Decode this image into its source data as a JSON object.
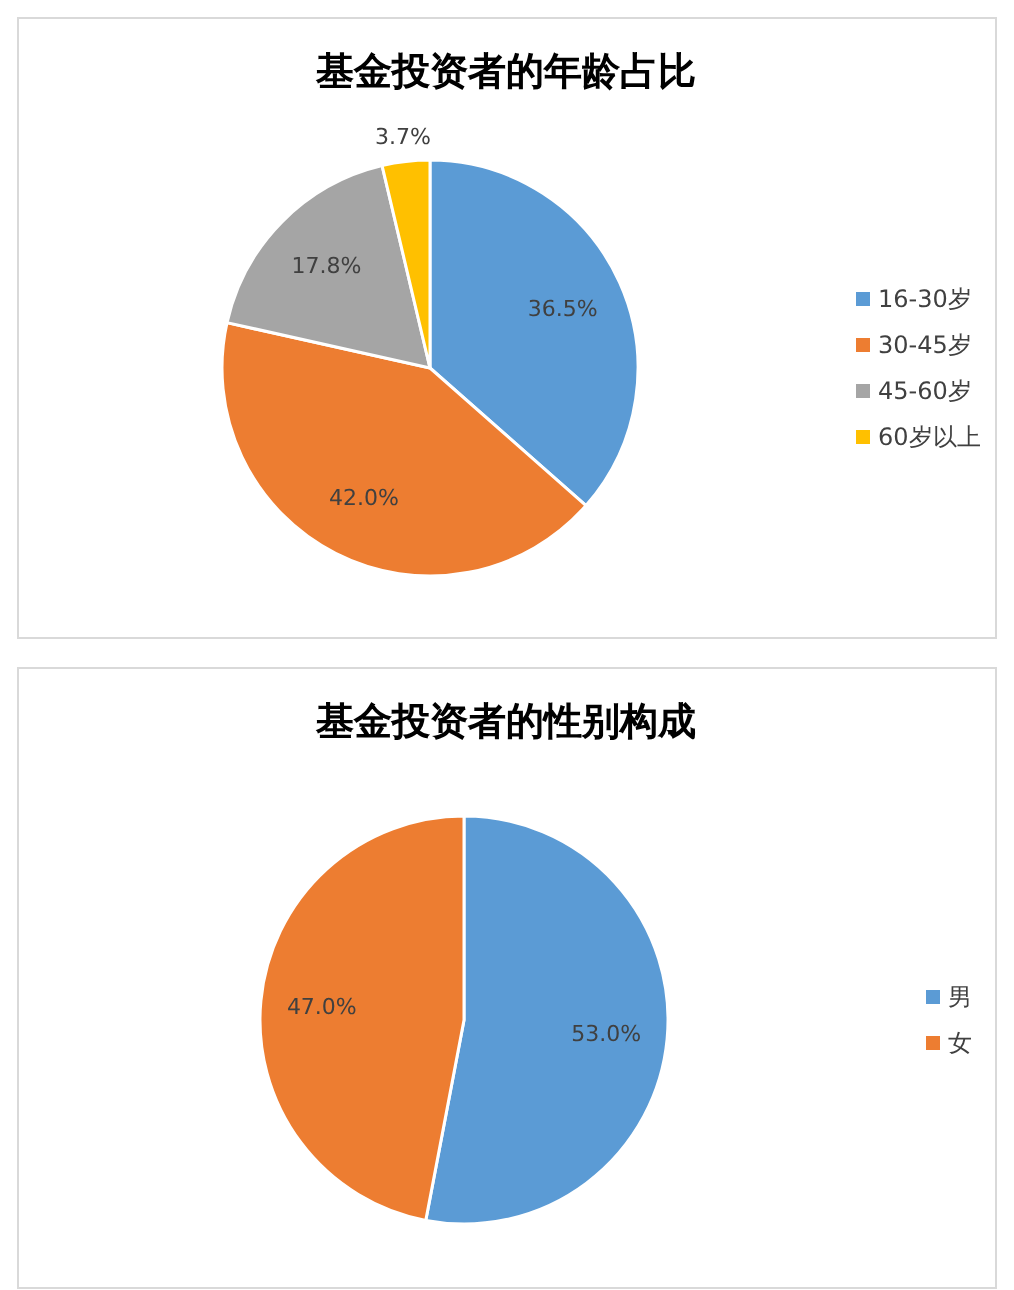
{
  "chart_data": [
    {
      "type": "pie",
      "title": "基金投资者的年龄占比",
      "categories": [
        "16-30岁",
        "30-45岁",
        "45-60岁",
        "60岁以上"
      ],
      "values": [
        36.5,
        42.0,
        17.8,
        3.7
      ],
      "colors": [
        "#5b9bd5",
        "#ed7d31",
        "#a5a5a5",
        "#ffc000"
      ],
      "value_labels": [
        "36.5%",
        "42.0%",
        "17.8%",
        "3.7%"
      ],
      "legend": "right"
    },
    {
      "type": "pie",
      "title": "基金投资者的性别构成",
      "categories": [
        "男",
        "女"
      ],
      "values": [
        53.0,
        47.0
      ],
      "colors": [
        "#5b9bd5",
        "#ed7d31"
      ],
      "value_labels": [
        "53.0%",
        "47.0%"
      ],
      "legend": "right"
    }
  ]
}
